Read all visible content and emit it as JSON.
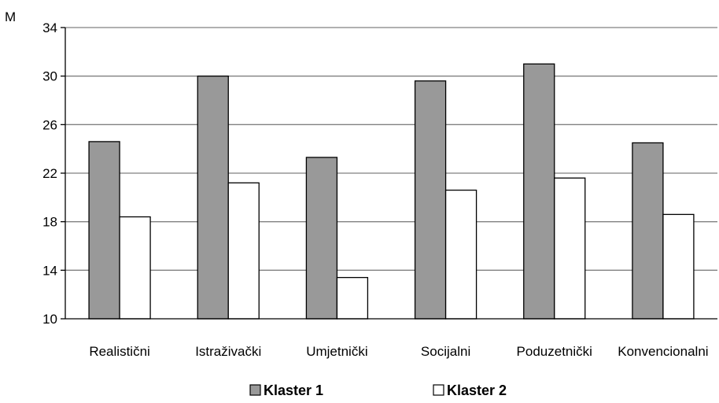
{
  "chart_data": {
    "type": "bar",
    "ylabel": "M",
    "ylim": [
      10,
      34
    ],
    "yticks": [
      10,
      14,
      18,
      22,
      26,
      30,
      34
    ],
    "grid": true,
    "legend_position": "bottom",
    "categories": [
      "Realistični",
      "Istraživački",
      "Umjetnički",
      "Socijalni",
      "Poduzetnički",
      "Konvencionalni"
    ],
    "series": [
      {
        "name": "Klaster 1",
        "color": "#999999",
        "values": [
          24.6,
          30.0,
          23.3,
          29.6,
          31.0,
          24.5
        ]
      },
      {
        "name": "Klaster 2",
        "color": "#ffffff",
        "values": [
          18.4,
          21.2,
          13.4,
          20.6,
          21.6,
          18.6
        ]
      }
    ]
  }
}
